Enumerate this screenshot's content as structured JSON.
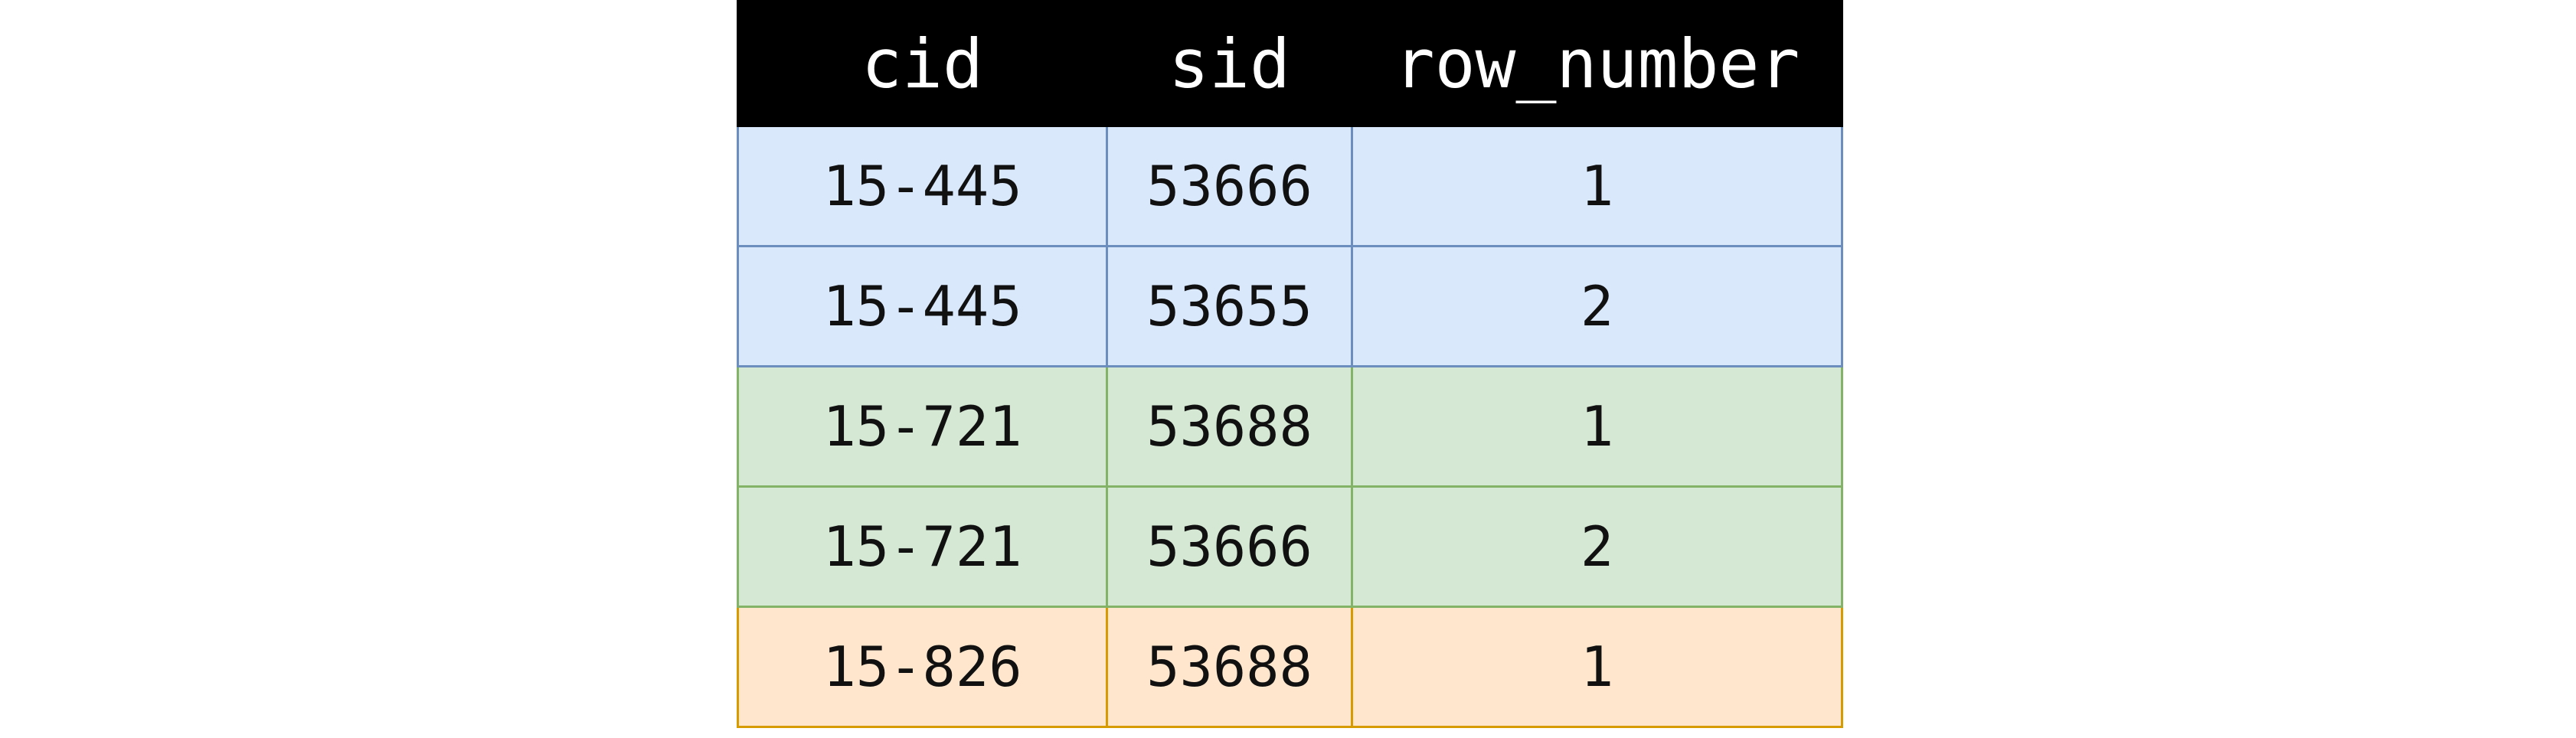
{
  "table": {
    "columns": [
      "cid",
      "sid",
      "row_number"
    ],
    "rows": [
      {
        "cid": "15-445",
        "sid": "53666",
        "row_number": "1",
        "group": "15-445"
      },
      {
        "cid": "15-445",
        "sid": "53655",
        "row_number": "2",
        "group": "15-445"
      },
      {
        "cid": "15-721",
        "sid": "53688",
        "row_number": "1",
        "group": "15-721"
      },
      {
        "cid": "15-721",
        "sid": "53666",
        "row_number": "2",
        "group": "15-721"
      },
      {
        "cid": "15-826",
        "sid": "53688",
        "row_number": "1",
        "group": "15-826"
      }
    ]
  },
  "colors": {
    "header_bg": "#000000",
    "header_text": "#ffffff",
    "groups": {
      "15-445": {
        "fill": "#dae8fc",
        "border": "#6c8ebf"
      },
      "15-721": {
        "fill": "#d5e8d4",
        "border": "#82b366"
      },
      "15-826": {
        "fill": "#ffe6cc",
        "border": "#d79b00"
      }
    }
  }
}
